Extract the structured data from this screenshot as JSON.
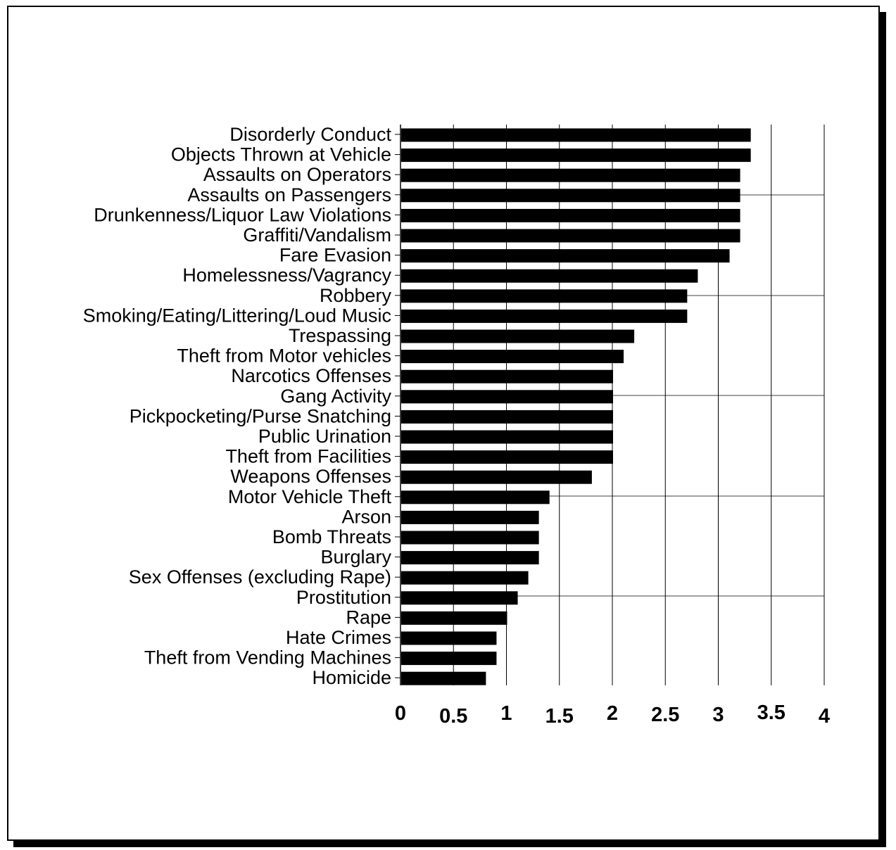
{
  "chart_data": {
    "type": "bar",
    "orientation": "horizontal",
    "title": "",
    "xlabel": "",
    "ylabel": "",
    "xlim": [
      0,
      4
    ],
    "ticks": [
      "0",
      "0.5",
      "1",
      "1.5",
      "2",
      "2.5",
      "3",
      "3.5",
      "4"
    ],
    "grid": true,
    "bar_color": "#000000",
    "categories": [
      "Disorderly Conduct",
      "Objects Thrown at Vehicle",
      "Assaults on Operators",
      "Assaults on Passengers",
      "Drunkenness/Liquor Law Violations",
      "Graffiti/Vandalism",
      "Fare Evasion",
      "Homelessness/Vagrancy",
      "Robbery",
      "Smoking/Eating/Littering/Loud Music",
      "Trespassing",
      "Theft from Motor vehicles",
      "Narcotics Offenses",
      "Gang Activity",
      "Pickpocketing/Purse Snatching",
      "Public Urination",
      "Theft from Facilities",
      "Weapons Offenses",
      "Motor Vehicle Theft",
      "Arson",
      "Bomb Threats",
      "Burglary",
      "Sex Offenses (excluding Rape)",
      "Prostitution",
      "Rape",
      "Hate Crimes",
      "Theft from Vending Machines",
      "Homicide"
    ],
    "values": [
      3.3,
      3.3,
      3.2,
      3.2,
      3.2,
      3.2,
      3.1,
      2.8,
      2.7,
      2.7,
      2.2,
      2.1,
      2.0,
      2.0,
      2.0,
      2.0,
      2.0,
      1.8,
      1.4,
      1.3,
      1.3,
      1.3,
      1.2,
      1.1,
      1.0,
      0.9,
      0.9,
      0.8
    ]
  }
}
